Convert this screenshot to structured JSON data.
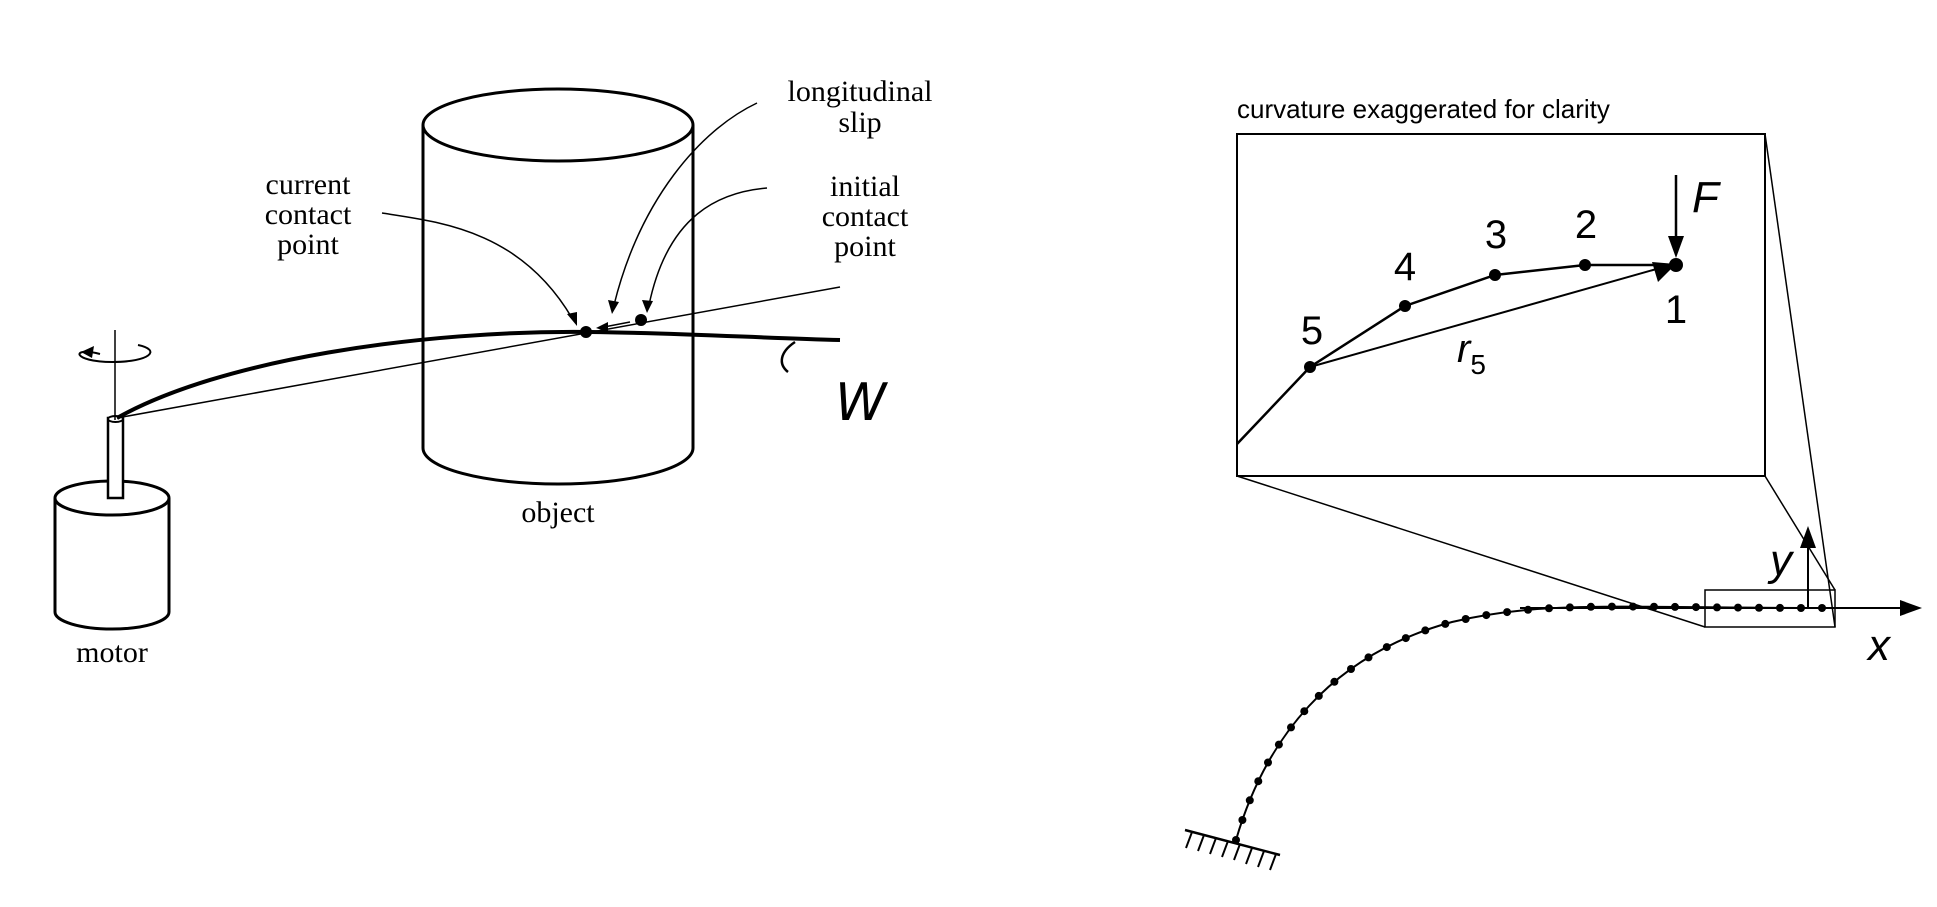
{
  "left_panel": {
    "labels": {
      "longitudinal_line1": "longitudinal",
      "longitudinal_line2": "slip",
      "current_line1": "current",
      "current_line2": "contact",
      "current_line3": "point",
      "initial_line1": "initial",
      "initial_line2": "contact",
      "initial_line3": "point",
      "object": "object",
      "motor": "motor",
      "whisker": "W"
    }
  },
  "right_panel": {
    "caption": "curvature exaggerated for clarity",
    "node_labels": [
      "1",
      "2",
      "3",
      "4",
      "5"
    ],
    "radius_label": "r",
    "radius_subscript": "5",
    "force_label": "F",
    "x_axis_label": "x",
    "y_axis_label": "y"
  }
}
